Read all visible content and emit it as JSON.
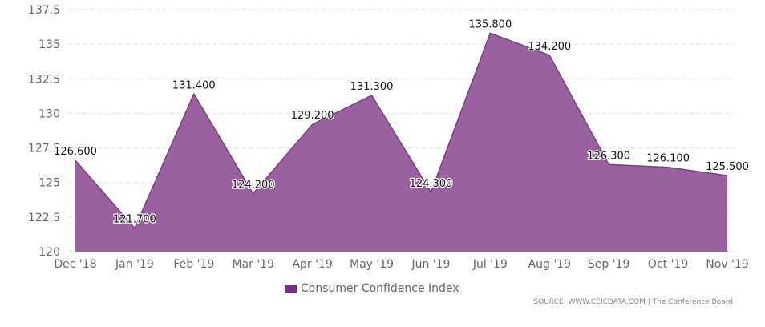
{
  "chart_data": {
    "type": "area",
    "categories": [
      "Dec '18",
      "Jan '19",
      "Feb '19",
      "Mar '19",
      "Apr '19",
      "May '19",
      "Jun '19",
      "Jul '19",
      "Aug '19",
      "Sep '19",
      "Oct '19",
      "Nov '19"
    ],
    "series": [
      {
        "name": "Consumer Confidence Index",
        "values": [
          126.6,
          121.7,
          131.4,
          124.2,
          129.2,
          131.3,
          124.3,
          135.8,
          134.2,
          126.3,
          126.1,
          125.5
        ],
        "labels": [
          "126.600",
          "121.700",
          "131.400",
          "124.200",
          "129.200",
          "131.300",
          "124.300",
          "135.800",
          "134.200",
          "126.300",
          "126.100",
          "125.500"
        ]
      }
    ],
    "ylim": [
      120,
      137.5
    ],
    "yticks": [
      "120",
      "122.5",
      "125",
      "127.5",
      "130",
      "132.5",
      "135",
      "137.5"
    ],
    "grid": true,
    "legend": "bottom",
    "colors": {
      "fill": "#9a60a0",
      "line": "#7a3e80",
      "swatch": "#7b2d83"
    }
  },
  "source": "SOURCE: WWW.CEICDATA.COM | The Conference Board"
}
